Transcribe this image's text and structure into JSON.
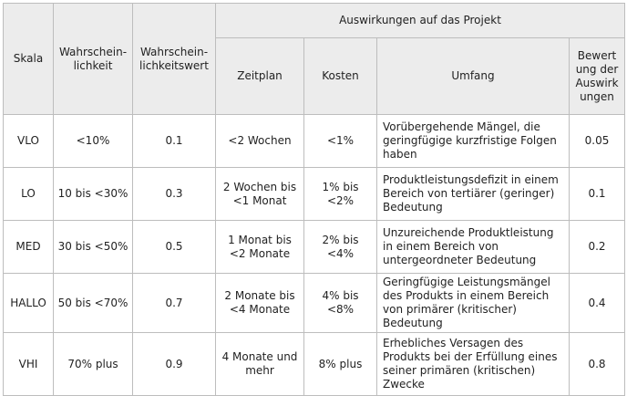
{
  "header": {
    "scale": "Skala",
    "probability": "Wahrschein-\nlichkeit",
    "probability_value": "Wahrschein-\nlichkeitswert",
    "impact_group": "Auswirkungen auf das Projekt",
    "schedule": "Zeitplan",
    "cost": "Kosten",
    "scope": "Umfang",
    "impact_rating": "Bewert\nung der\nAuswirk\nungen"
  },
  "rows": [
    {
      "scale": "VLO",
      "probability": "<10%",
      "probability_value": "0.1",
      "schedule": "<2 Wochen",
      "cost": "<1%",
      "scope": "Vorübergehende Mängel, die geringfügige kurzfristige Folgen haben",
      "impact_rating": "0.05"
    },
    {
      "scale": "LO",
      "probability": "10 bis <30%",
      "probability_value": "0.3",
      "schedule": "2 Wochen bis <1 Monat",
      "cost": "1% bis <2%",
      "scope": "Produktleistungsdefizit in einem Bereich von tertiärer (geringer) Bedeutung",
      "impact_rating": "0.1"
    },
    {
      "scale": "MED",
      "probability": "30 bis <50%",
      "probability_value": "0.5",
      "schedule": "1 Monat bis <2 Monate",
      "cost": "2% bis <4%",
      "scope": "Unzureichende Produktleistung in einem Bereich von untergeordneter Bedeutung",
      "impact_rating": "0.2"
    },
    {
      "scale": "HALLO",
      "probability": "50 bis <70%",
      "probability_value": "0.7",
      "schedule": "2 Monate bis <4 Monate",
      "cost": "4% bis <8%",
      "scope": "Geringfügige Leistungsmängel des Produkts in einem Bereich von primärer (kritischer) Bedeutung",
      "impact_rating": "0.4"
    },
    {
      "scale": "VHI",
      "probability": "70% plus",
      "probability_value": "0.9",
      "schedule": "4 Monate und mehr",
      "cost": "8% plus",
      "scope": "Erhebliches Versagen des Produkts bei der Erfüllung eines seiner primären (kritischen) Zwecke",
      "impact_rating": "0.8"
    }
  ]
}
